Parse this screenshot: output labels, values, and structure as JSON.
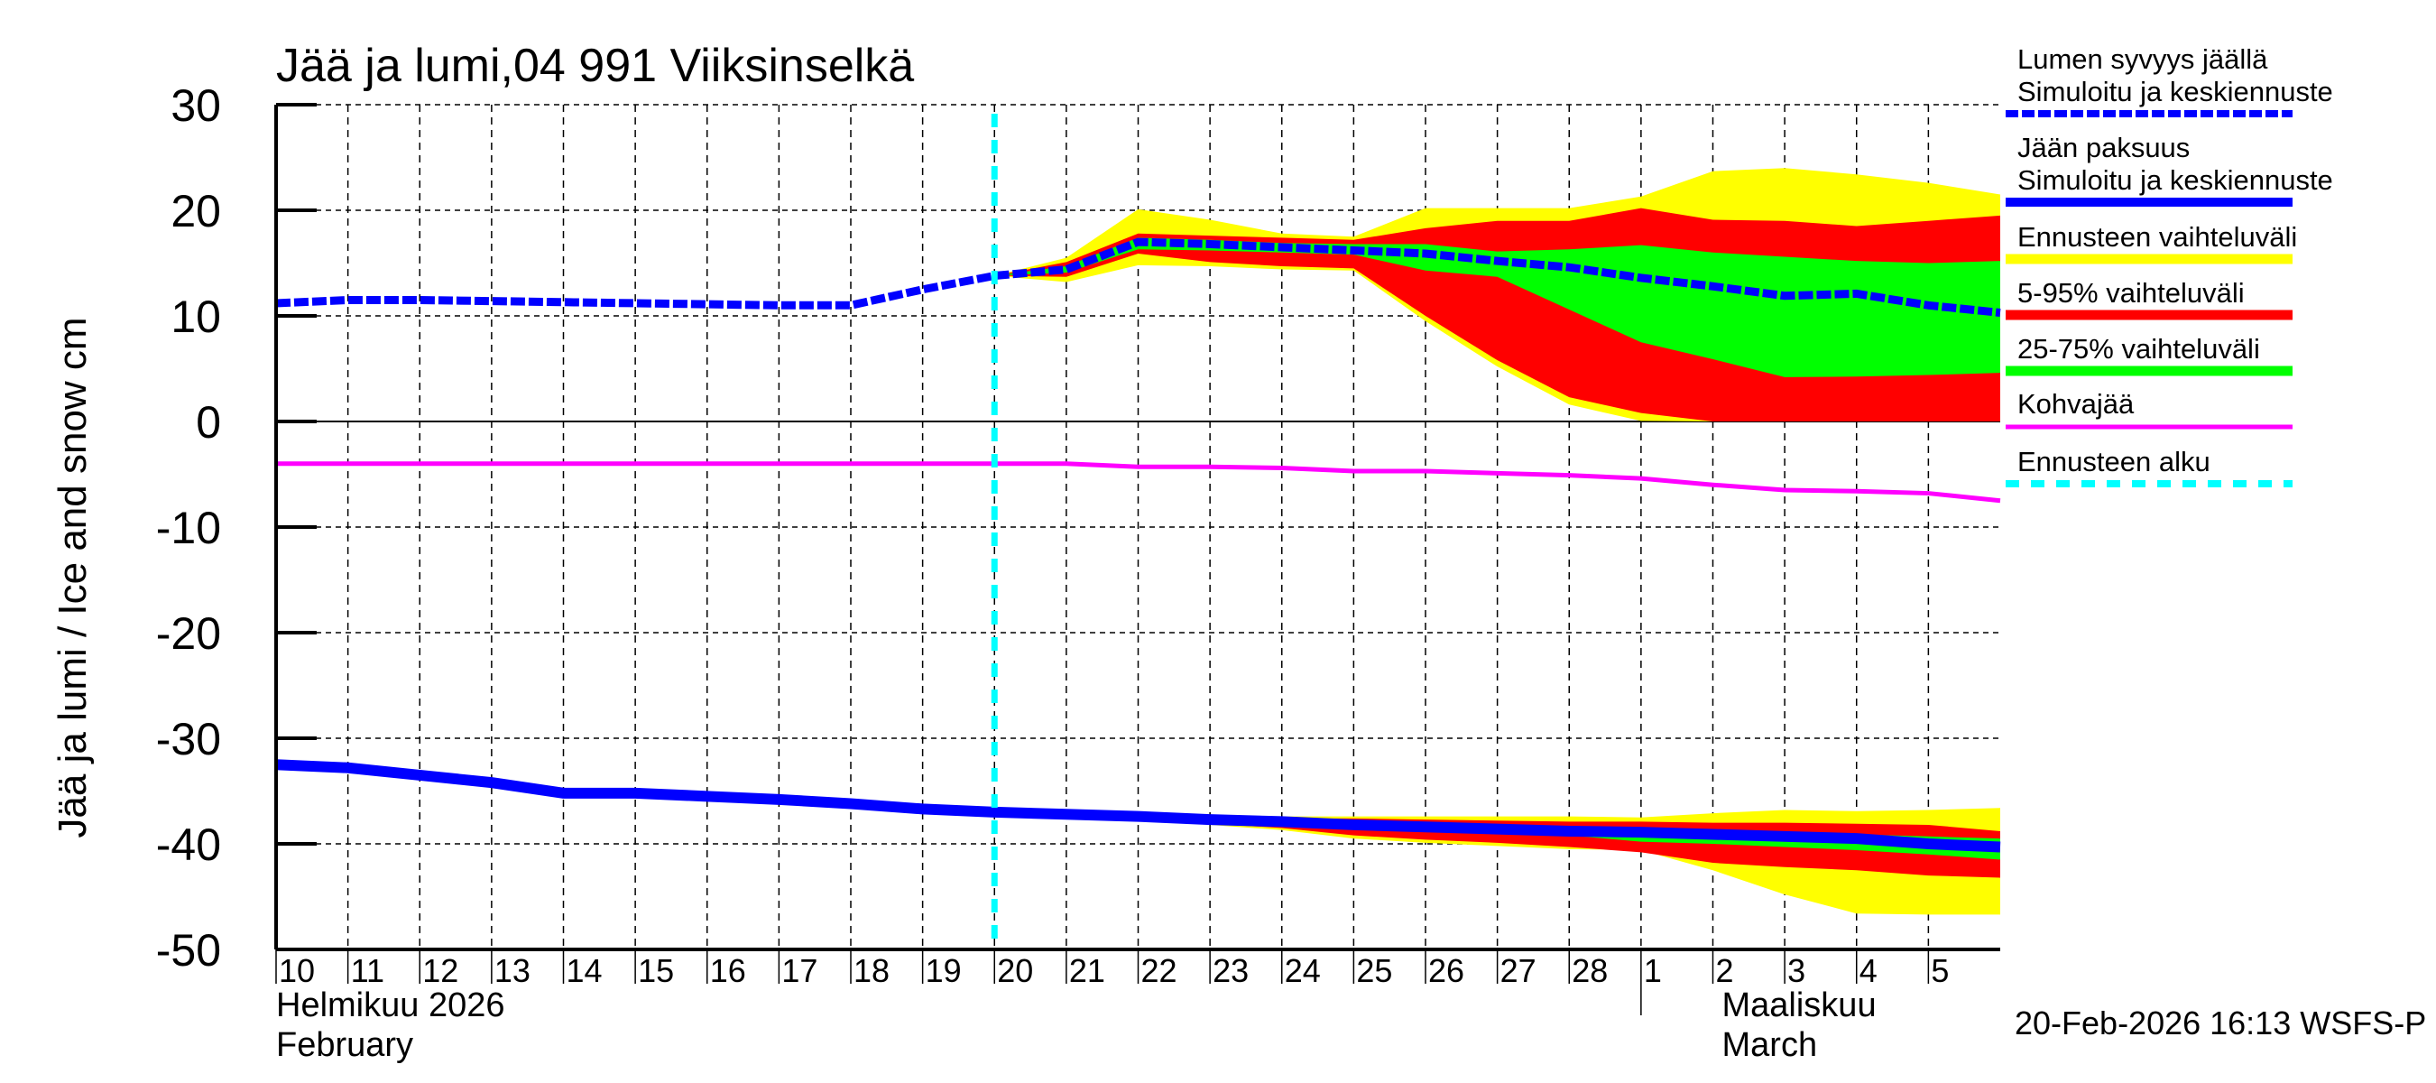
{
  "chart_data": {
    "type": "area",
    "title": "Jää ja lumi,04 991 Viiksinselkä",
    "ylabel": "Jää ja lumi / Ice and snow    cm",
    "ylim": [
      -50,
      30
    ],
    "yticks": [
      30,
      20,
      10,
      0,
      -10,
      -20,
      -30,
      -40,
      -50
    ],
    "xlim": [
      "2026-02-10",
      "2026-03-06"
    ],
    "grid": true,
    "legend_placement": "right",
    "dates": [
      "2026-02-10",
      "2026-02-11",
      "2026-02-12",
      "2026-02-13",
      "2026-02-14",
      "2026-02-15",
      "2026-02-16",
      "2026-02-17",
      "2026-02-18",
      "2026-02-19",
      "2026-02-20",
      "2026-02-21",
      "2026-02-22",
      "2026-02-23",
      "2026-02-24",
      "2026-02-25",
      "2026-02-26",
      "2026-02-27",
      "2026-02-28",
      "2026-03-01",
      "2026-03-02",
      "2026-03-03",
      "2026-03-04",
      "2026-03-05",
      "2026-03-06"
    ],
    "xtick_labels": [
      "10",
      "11",
      "12",
      "13",
      "14",
      "15",
      "16",
      "17",
      "18",
      "19",
      "20",
      "21",
      "22",
      "23",
      "24",
      "25",
      "26",
      "27",
      "28",
      "1",
      "2",
      "3",
      "4",
      "5"
    ],
    "month_labels": [
      {
        "line1": "Helmikuu  2026",
        "line2": "February"
      },
      {
        "line1": "Maaliskuu",
        "line2": "March"
      }
    ],
    "forecast_start": "2026-02-20",
    "forecast_dates": [
      "2026-02-20",
      "2026-02-21",
      "2026-02-22",
      "2026-02-23",
      "2026-02-24",
      "2026-02-25",
      "2026-02-26",
      "2026-02-27",
      "2026-02-28",
      "2026-03-01",
      "2026-03-02",
      "2026-03-03",
      "2026-03-04",
      "2026-03-05",
      "2026-03-06"
    ],
    "snow_depth": [
      11.2,
      11.5,
      11.5,
      11.4,
      11.3,
      11.2,
      11.1,
      11.0,
      11.0,
      12.5,
      13.8,
      14.4,
      17.0,
      16.8,
      16.5,
      16.2,
      15.9,
      15.2,
      14.6,
      13.6,
      12.8,
      11.9,
      12.1,
      11.0,
      10.3
    ],
    "snow_bands": {
      "range_max": [
        13.8,
        15.5,
        20.1,
        19.1,
        17.8,
        17.5,
        20.2,
        20.2,
        20.2,
        21.3,
        23.7,
        24.0,
        23.4,
        22.6,
        21.5
      ],
      "p95": [
        13.8,
        15.1,
        17.8,
        17.6,
        17.4,
        17.2,
        18.3,
        19.0,
        19.0,
        20.2,
        19.1,
        19.0,
        18.5,
        19.0,
        19.5
      ],
      "p75": [
        13.8,
        14.7,
        17.4,
        17.2,
        16.9,
        16.8,
        16.8,
        16.1,
        16.3,
        16.7,
        16.0,
        15.6,
        15.2,
        15.0,
        15.2
      ],
      "p25": [
        13.8,
        14.1,
        16.3,
        16.2,
        16.0,
        15.8,
        14.3,
        13.7,
        10.6,
        7.5,
        5.9,
        4.2,
        4.25,
        4.4,
        4.6
      ],
      "p5": [
        13.8,
        13.7,
        15.9,
        15.1,
        14.7,
        14.5,
        10.0,
        5.8,
        2.3,
        0.8,
        0,
        0,
        0,
        0,
        0
      ],
      "range_min": [
        13.8,
        13.2,
        14.8,
        14.7,
        14.4,
        14.3,
        9.5,
        5.2,
        1.6,
        0.05,
        0,
        0,
        0,
        0,
        0
      ]
    },
    "ice_thickness": [
      -32.5,
      -32.8,
      -33.5,
      -34.2,
      -35.2,
      -35.2,
      -35.5,
      -35.8,
      -36.2,
      -36.7,
      -37.0,
      -37.2,
      -37.4,
      -37.7,
      -37.9,
      -38.2,
      -38.4,
      -38.6,
      -38.8,
      -38.9,
      -39.1,
      -39.3,
      -39.5,
      -40.0,
      -40.3
    ],
    "ice_bands": {
      "range_max": [
        -37.0,
        -37.1,
        -37.2,
        -37.3,
        -37.4,
        -37.4,
        -37.4,
        -37.4,
        -37.4,
        -37.5,
        -37.1,
        -36.8,
        -36.9,
        -36.8,
        -36.6
      ],
      "p95": [
        -37.0,
        -37.2,
        -37.3,
        -37.5,
        -37.6,
        -37.6,
        -37.7,
        -37.8,
        -37.9,
        -37.9,
        -38.0,
        -38.0,
        -38.1,
        -38.2,
        -38.8
      ],
      "p75": [
        -37.0,
        -37.2,
        -37.4,
        -37.7,
        -37.9,
        -38.1,
        -38.3,
        -38.5,
        -38.6,
        -38.7,
        -38.8,
        -38.9,
        -39.1,
        -39.3,
        -39.5
      ],
      "p25": [
        -37.0,
        -37.2,
        -37.5,
        -37.8,
        -38.1,
        -38.4,
        -38.6,
        -38.8,
        -39.2,
        -39.8,
        -40.0,
        -40.3,
        -40.6,
        -41.0,
        -41.5
      ],
      "p5": [
        -37.0,
        -37.3,
        -37.7,
        -38.1,
        -38.5,
        -39.2,
        -39.6,
        -39.9,
        -40.3,
        -40.8,
        -41.8,
        -42.2,
        -42.5,
        -43.0,
        -43.2
      ],
      "range_min": [
        -37.0,
        -37.3,
        -37.8,
        -38.2,
        -38.7,
        -39.5,
        -39.9,
        -40.2,
        -40.5,
        -40.6,
        -42.5,
        -44.8,
        -46.6,
        -46.7,
        -46.7
      ]
    },
    "slush_ice": [
      -4,
      -4,
      -4,
      -4,
      -4,
      -4,
      -4,
      -4,
      -4,
      -4,
      -4,
      -4,
      -4.3,
      -4.3,
      -4.4,
      -4.7,
      -4.7,
      -4.9,
      -5.1,
      -5.4,
      -6.0,
      -6.5,
      -6.6,
      -6.8,
      -7.5
    ],
    "legend": [
      {
        "line1": "Lumen syvyys jäällä",
        "line2": "Simuloitu ja keskiennuste",
        "color": "#0000ff",
        "style": "dashed"
      },
      {
        "line1": "Jään paksuus",
        "line2": "Simuloitu ja keskiennuste",
        "color": "#0000ff",
        "style": "solid"
      },
      {
        "line1": "Ennusteen vaihteluväli",
        "color": "#ffff00",
        "style": "band"
      },
      {
        "line1": "5-95% vaihteluväli",
        "color": "#ff0000",
        "style": "band"
      },
      {
        "line1": "25-75% vaihteluväli",
        "color": "#00ff00",
        "style": "band"
      },
      {
        "line1": "Kohvajää",
        "color": "#ff00ff",
        "style": "solid"
      },
      {
        "line1": "Ennusteen alku",
        "color": "#00ffff",
        "style": "dashed"
      }
    ],
    "footer": "20-Feb-2026 16:13 WSFS-P"
  }
}
